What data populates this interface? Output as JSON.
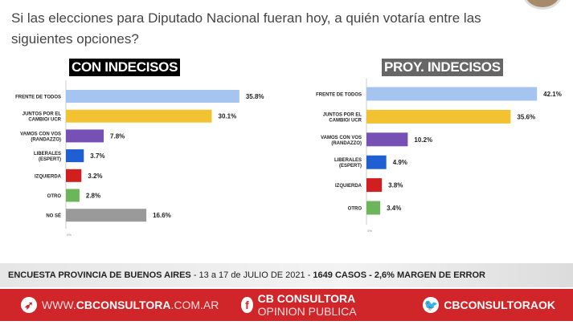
{
  "title": "Si las elecciones para Diputado Nacional fueran hoy, a quién votaría entre las siguientes opciones?",
  "chart_data": [
    {
      "type": "bar",
      "orientation": "horizontal",
      "title": "CON INDECISOS",
      "categories": [
        "FRENTE DE TODOS",
        "JUNTOS POR EL CAMBIO/ UCR",
        "VAMOS CON VOS (RANDAZZO)",
        "LIBERALES (ESPERT)",
        "IZQUIERDA",
        "OTRO",
        "NO SÉ"
      ],
      "values": [
        35.8,
        30.1,
        7.8,
        3.7,
        3.2,
        2.8,
        16.6
      ],
      "labels": [
        "35.8%",
        "30.1%",
        "7.8%",
        "3.7%",
        "3.2%",
        "2.8%",
        "16.6%"
      ],
      "colors": [
        "#a6c4f0",
        "#f2c232",
        "#7750b5",
        "#1f5fd1",
        "#d11f1f",
        "#6cb55a",
        "#9a9a9a"
      ],
      "xtick": "0%",
      "xlim": [
        0,
        40
      ]
    },
    {
      "type": "bar",
      "orientation": "horizontal",
      "title": "PROY. INDECISOS",
      "categories": [
        "FRENTE DE TODOS",
        "JUNTOS POR EL CAMBIO/ UCR",
        "VAMOS CON VOS (RANDAZZO)",
        "LIBERALES (ESPERT)",
        "IZQUIERDA",
        "OTRO"
      ],
      "values": [
        42.1,
        35.6,
        10.2,
        4.9,
        3.8,
        3.4
      ],
      "labels": [
        "42.1%",
        "35.6%",
        "10.2%",
        "4.9%",
        "3.8%",
        "3.4%"
      ],
      "colors": [
        "#a6c4f0",
        "#f2c232",
        "#7750b5",
        "#1f5fd1",
        "#d11f1f",
        "#6cb55a"
      ],
      "xtick": "0%",
      "xlim": [
        0,
        45
      ]
    }
  ],
  "footer": {
    "survey": "ENCUESTA PROVINCIA DE BUENOS AIRES",
    "dates": " - 13 a 17 de  JULIO DE 2021 - ",
    "cases": "1649 CASOS - 2,6% MARGEN DE ERROR"
  },
  "social": {
    "web_prefix": "WWW.",
    "web_bold": "CBCONSULTORA",
    "web_suffix": ".COM.AR",
    "fb_bold": "CB CONSULTORA",
    "fb_light": " OPINION PUBLICA",
    "tw": "CBCONSULTORAOK",
    "fb_icon": "f"
  }
}
